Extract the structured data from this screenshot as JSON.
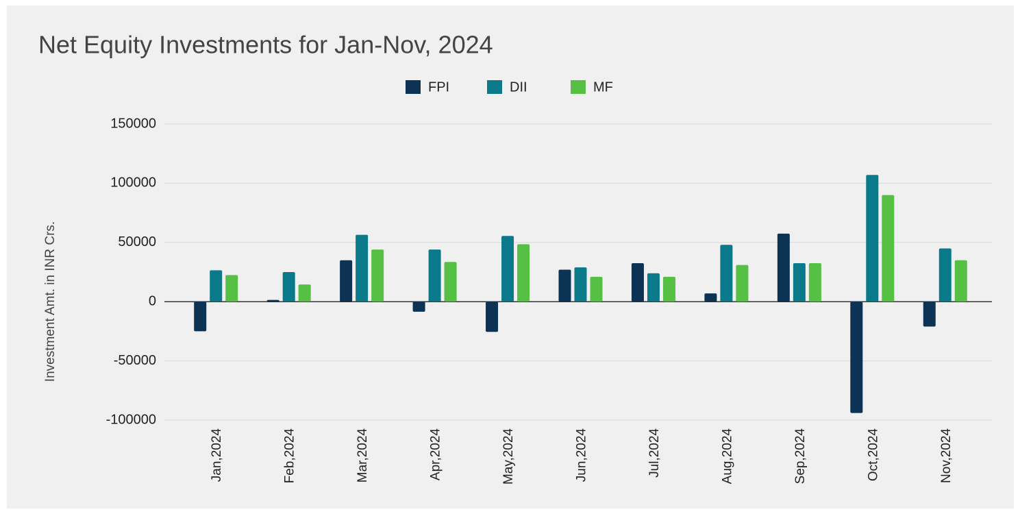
{
  "chart_data": {
    "type": "bar",
    "title": "Net Equity Investments for Jan-Nov, 2024",
    "y_label": "Investment Amt. in INR Crs.",
    "categories": [
      "Jan,2024",
      "Feb,2024",
      "Mar,2024",
      "Apr,2024",
      "May,2024",
      "Jun,2024",
      "Jul,2024",
      "Aug,2024",
      "Sep,2024",
      "Oct,2024",
      "Nov,2024"
    ],
    "series": [
      {
        "name": "FPI",
        "color": "#0d3354",
        "values": [
          -25000,
          1500,
          35000,
          -8500,
          -25500,
          27000,
          32500,
          7000,
          57500,
          -94000,
          -21000
        ]
      },
      {
        "name": "DII",
        "color": "#0a7a8a",
        "values": [
          26500,
          25000,
          56500,
          44000,
          55500,
          29000,
          24000,
          48000,
          32500,
          107000,
          45000
        ]
      },
      {
        "name": "MF",
        "color": "#55c044",
        "values": [
          22500,
          14500,
          44000,
          33500,
          48500,
          21000,
          21000,
          31000,
          32500,
          90000,
          35000
        ]
      }
    ],
    "ylim": [
      -100000,
      150000
    ],
    "yticks": [
      -100000,
      -50000,
      0,
      50000,
      100000,
      150000
    ],
    "grid": true,
    "legend": "top"
  }
}
